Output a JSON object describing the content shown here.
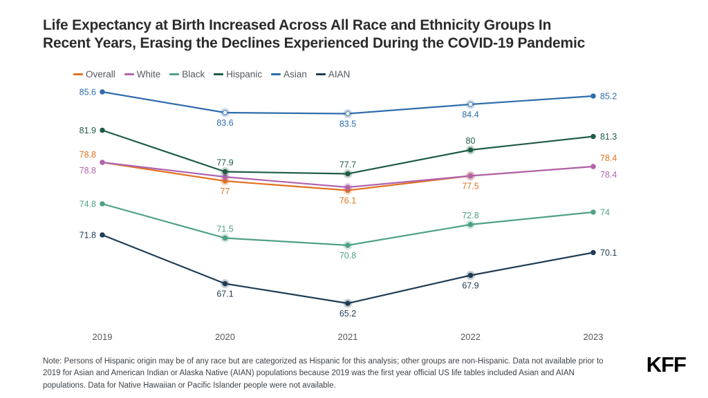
{
  "page": {
    "title_line1": "Life Expectancy at Birth Increased Across All Race and Ethnicity Groups In",
    "title_line2": "Recent Years, Erasing the Declines Experienced During the COVID-19 Pandemic",
    "note": "Note: Persons of Hispanic origin may be of any race but are categorized as Hispanic for this analysis; other groups are non-Hispanic. Data not available prior to 2019 for Asian and American Indian or Alaska Native (AIAN) populations because 2019 was the first year official US life tables included Asian and AIAN populations. Data for Native Hawaiian or Pacific Islander people were not available.",
    "logo": "KFF"
  },
  "chart_data": {
    "type": "line",
    "title": "Life Expectancy at Birth Increased Across All Race and Ethnicity Groups In Recent Years, Erasing the Declines Experienced During the COVID-19 Pandemic",
    "xlabel": "",
    "ylabel": "",
    "x_categories": [
      "2019",
      "2020",
      "2021",
      "2022",
      "2023"
    ],
    "y_axis_visible": false,
    "grid": false,
    "legend_position": "top-left",
    "ylim_hint": [
      63,
      87
    ],
    "axis_label_color": "#55595e",
    "series": [
      {
        "name": "Overall",
        "color": "#e0721f",
        "values": [
          78.8,
          77,
          76.1,
          77.5,
          78.4
        ],
        "point_labels": [
          "78.8",
          "77",
          "76.1",
          "77.5",
          "78.4"
        ],
        "label_positions": [
          "left-up",
          "below",
          "below",
          "below",
          "right-up"
        ],
        "marker": "solid"
      },
      {
        "name": "White",
        "color": "#b164af",
        "values": [
          78.8,
          77.4,
          76.4,
          77.5,
          78.4
        ],
        "point_labels": [
          "78.8",
          null,
          null,
          null,
          "78.4"
        ],
        "label_positions": [
          "left-down",
          null,
          null,
          null,
          "right-down"
        ],
        "marker": "solid"
      },
      {
        "name": "Black",
        "color": "#4fa185",
        "values": [
          74.8,
          71.5,
          70.8,
          72.8,
          74
        ],
        "point_labels": [
          "74.8",
          "71.5",
          "70.8",
          "72.8",
          "74"
        ],
        "label_positions": [
          "left",
          "above",
          "below",
          "above",
          "right"
        ],
        "marker": "solid"
      },
      {
        "name": "Hispanic",
        "color": "#1f5c44",
        "values": [
          81.9,
          77.9,
          77.7,
          80,
          81.3
        ],
        "point_labels": [
          "81.9",
          "77.9",
          "77.7",
          "80",
          "81.3"
        ],
        "label_positions": [
          "left",
          "above",
          "above",
          "above",
          "right"
        ],
        "marker": "solid"
      },
      {
        "name": "Asian",
        "color": "#2e6dac",
        "values": [
          85.6,
          83.6,
          83.5,
          84.4,
          85.2
        ],
        "point_labels": [
          "85.6",
          "83.6",
          "83.5",
          "84.4",
          "85.2"
        ],
        "label_positions": [
          "left",
          "below",
          "below",
          "below",
          "right"
        ],
        "marker": "hollow-middle"
      },
      {
        "name": "AIAN",
        "color": "#1e3d55",
        "values": [
          71.8,
          67.1,
          65.2,
          67.9,
          70.1
        ],
        "point_labels": [
          "71.8",
          "67.1",
          "65.2",
          "67.9",
          "70.1"
        ],
        "label_positions": [
          "left",
          "below",
          "below",
          "below",
          "right"
        ],
        "marker": "solid"
      }
    ]
  }
}
